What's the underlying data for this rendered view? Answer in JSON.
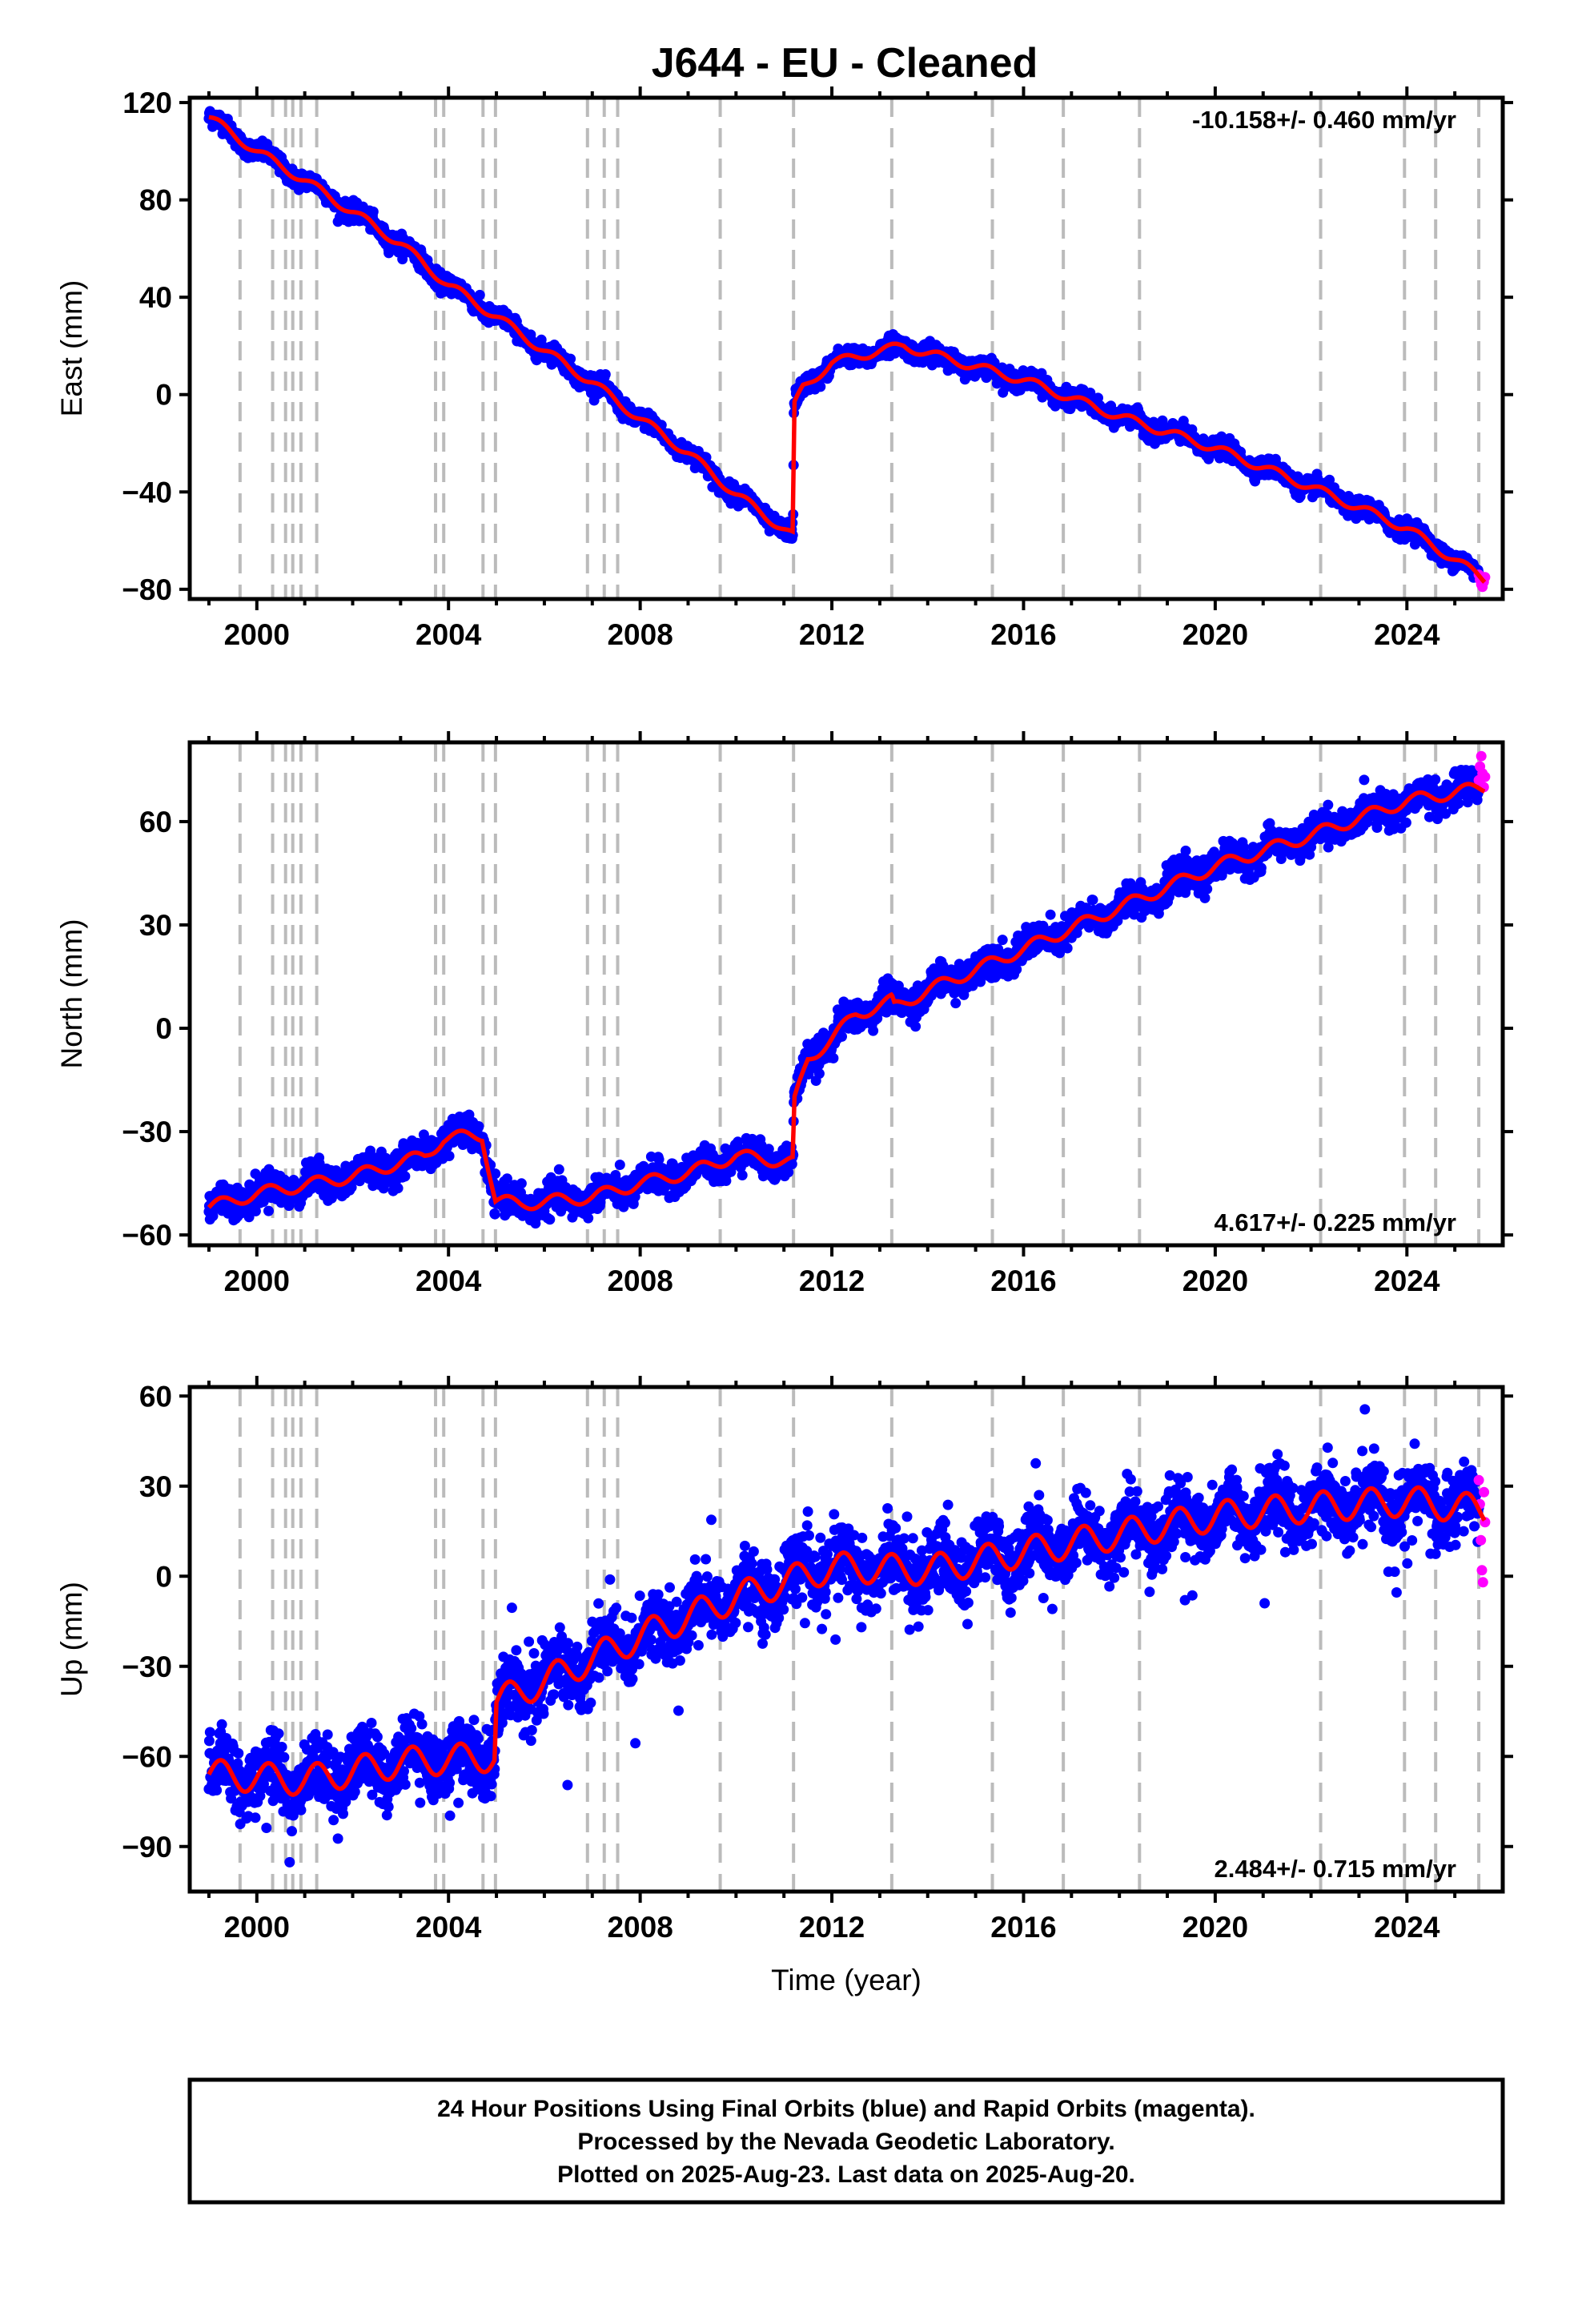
{
  "chart_data": {
    "type": "scatter",
    "title": "J644  - EU - Cleaned",
    "xlabel": "Time (year)",
    "xlim": [
      1998.6,
      2026.0
    ],
    "x_ticks": [
      "2000",
      "2004",
      "2008",
      "2012",
      "2016",
      "2020",
      "2024"
    ],
    "x_tick_values": [
      2000,
      2004,
      2008,
      2012,
      2016,
      2020,
      2024
    ],
    "grid": false,
    "series_colors": {
      "final_orbits": "#0000ff",
      "rapid_orbits": "#ff00ff",
      "model": "#ff0000",
      "offset_lines": "#bbbbbb"
    },
    "offset_epochs": [
      1999.65,
      2000.33,
      2000.6,
      2000.75,
      2000.92,
      2001.25,
      2003.73,
      2003.9,
      2004.72,
      2004.98,
      2006.9,
      2007.25,
      2007.53,
      2009.67,
      2011.2,
      2013.25,
      2015.35,
      2016.83,
      2018.42,
      2022.2,
      2023.95,
      2024.6,
      2025.5
    ],
    "data_range": {
      "start": 1999.0,
      "end": 2025.63
    },
    "panels": [
      {
        "component": "east",
        "ylabel": "East (mm)",
        "ylim": [
          -84,
          122
        ],
        "y_ticks": [
          "120",
          "80",
          "40",
          "0",
          "−40",
          "−80"
        ],
        "y_tick_values": [
          120,
          80,
          40,
          0,
          -40,
          -80
        ],
        "rate_text": "-10.158+/- 0.460 mm/yr",
        "rate_position": "top-right",
        "noise_mm": 1.8,
        "seasonal_amp_mm": 1.8,
        "trend_knots": [
          [
            1999.0,
            114
          ],
          [
            2000.0,
            100
          ],
          [
            2001.0,
            88
          ],
          [
            2002.0,
            75
          ],
          [
            2003.0,
            62
          ],
          [
            2004.0,
            45
          ],
          [
            2005.0,
            32
          ],
          [
            2006.0,
            18
          ],
          [
            2007.0,
            5
          ],
          [
            2008.0,
            -10
          ],
          [
            2009.0,
            -24
          ],
          [
            2010.0,
            -41
          ],
          [
            2011.19,
            -58
          ],
          [
            2011.21,
            -5
          ],
          [
            2011.4,
            3
          ],
          [
            2012.0,
            13
          ],
          [
            2013.0,
            18
          ],
          [
            2013.5,
            20
          ],
          [
            2014.0,
            17
          ],
          [
            2016.0,
            6
          ],
          [
            2018.0,
            -9
          ],
          [
            2020.0,
            -22
          ],
          [
            2022.0,
            -38
          ],
          [
            2024.0,
            -55
          ],
          [
            2025.63,
            -76
          ]
        ],
        "rapid_range": [
          2025.5,
          2025.63
        ],
        "rapid_values": [
          -74,
          -76,
          -78,
          -79,
          -77,
          -75
        ]
      },
      {
        "component": "north",
        "ylabel": "North (mm)",
        "ylim": [
          -63,
          83
        ],
        "y_ticks": [
          "60",
          "30",
          "0",
          "−30",
          "−60"
        ],
        "y_tick_values": [
          60,
          30,
          0,
          -30,
          -60
        ],
        "rate_text": "4.617+/- 0.225 mm/yr",
        "rate_position": "bottom-right",
        "noise_mm": 2.2,
        "seasonal_amp_mm": 1.8,
        "trend_knots": [
          [
            1999.0,
            -52
          ],
          [
            2000.0,
            -48
          ],
          [
            2002.0,
            -43
          ],
          [
            2003.5,
            -37
          ],
          [
            2003.9,
            -32
          ],
          [
            2004.7,
            -31
          ],
          [
            2004.98,
            -50
          ],
          [
            2005.5,
            -51
          ],
          [
            2007.0,
            -49
          ],
          [
            2008.0,
            -45
          ],
          [
            2009.0,
            -42
          ],
          [
            2010.0,
            -37
          ],
          [
            2011.19,
            -39
          ],
          [
            2011.21,
            -22
          ],
          [
            2011.5,
            -9
          ],
          [
            2012.0,
            -3
          ],
          [
            2012.5,
            4
          ],
          [
            2013.25,
            8
          ],
          [
            2013.3,
            6
          ],
          [
            2014.0,
            11
          ],
          [
            2016.0,
            23
          ],
          [
            2018.0,
            35
          ],
          [
            2020.0,
            47
          ],
          [
            2022.0,
            56
          ],
          [
            2024.0,
            66
          ],
          [
            2025.63,
            70
          ]
        ],
        "rapid_range": [
          2025.5,
          2025.63
        ],
        "rapid_values": [
          72,
          76,
          79,
          74,
          70,
          73
        ]
      },
      {
        "component": "up",
        "ylabel": "Up (mm)",
        "ylim": [
          -105,
          63
        ],
        "y_ticks": [
          "60",
          "30",
          "0",
          "−30",
          "−60",
          "−90"
        ],
        "y_tick_values": [
          60,
          30,
          0,
          -30,
          -60,
          -90
        ],
        "rate_text": "2.484+/- 0.715 mm/yr",
        "rate_position": "bottom-right",
        "noise_mm": 5.5,
        "seasonal_amp_mm": 5,
        "trend_knots": [
          [
            1999.0,
            -66
          ],
          [
            2001.0,
            -68
          ],
          [
            2003.0,
            -62
          ],
          [
            2004.97,
            -60
          ],
          [
            2004.99,
            -42
          ],
          [
            2006.0,
            -35
          ],
          [
            2008.0,
            -20
          ],
          [
            2010.0,
            -7
          ],
          [
            2012.0,
            3
          ],
          [
            2014.0,
            2
          ],
          [
            2016.0,
            8
          ],
          [
            2018.0,
            14
          ],
          [
            2020.0,
            20
          ],
          [
            2022.0,
            23
          ],
          [
            2024.0,
            25
          ],
          [
            2025.63,
            22
          ]
        ],
        "rapid_range": [
          2025.5,
          2025.63
        ],
        "rapid_values": [
          32,
          24,
          12,
          2,
          -2,
          28,
          18
        ]
      }
    ],
    "footer_lines": [
      "24 Hour Positions Using Final Orbits (blue) and Rapid Orbits (magenta).",
      "Processed by the Nevada Geodetic Laboratory.",
      "Plotted on 2025-Aug-23. Last data on 2025-Aug-20."
    ]
  }
}
